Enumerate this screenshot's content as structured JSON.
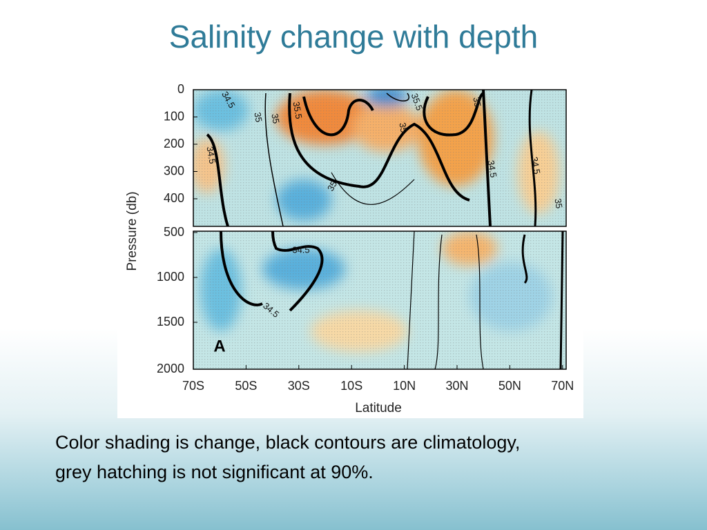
{
  "slide": {
    "title": "Salinity change with depth",
    "caption": [
      "Color shading is change, black contours are climatology,",
      "grey hatching is not significant at 90%."
    ]
  },
  "figure": {
    "panel": "A",
    "y_label": "Pressure (db)",
    "x_label": "Latitude",
    "y_ticks_upper": [
      "0",
      "100",
      "200",
      "300",
      "400"
    ],
    "y_ticks_lower": [
      "500",
      "1000",
      "1500",
      "2000"
    ],
    "x_ticks": [
      "70S",
      "50S",
      "30S",
      "10S",
      "10N",
      "30N",
      "50N",
      "70N"
    ],
    "contour_labels": [
      "34.5",
      "35",
      "35.5",
      "35",
      "35.5",
      "35",
      "34.5",
      "35",
      "34.5",
      "34.5",
      "34.5",
      "35",
      "34.5",
      "35"
    ]
  }
}
